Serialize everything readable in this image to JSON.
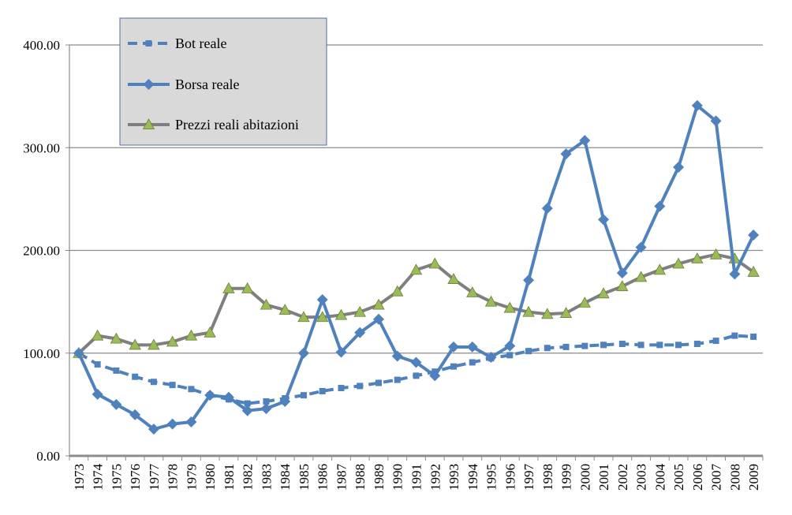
{
  "chart_data": {
    "type": "line",
    "title": "",
    "xlabel": "",
    "ylabel": "",
    "ylim": [
      0,
      400
    ],
    "y_ticks": [
      "0.00",
      "100.00",
      "200.00",
      "300.00",
      "400.00"
    ],
    "grid": "horizontal",
    "legend_position": "top-left",
    "categories": [
      "1973",
      "1974",
      "1975",
      "1976",
      "1977",
      "1978",
      "1979",
      "1980",
      "1981",
      "1982",
      "1983",
      "1984",
      "1985",
      "1986",
      "1987",
      "1988",
      "1989",
      "1990",
      "1991",
      "1992",
      "1993",
      "1994",
      "1995",
      "1996",
      "1997",
      "1998",
      "1999",
      "2000",
      "2001",
      "2002",
      "2003",
      "2004",
      "2005",
      "2006",
      "2007",
      "2008",
      "2009"
    ],
    "series": [
      {
        "name": "Bot reale",
        "color": "#4f81bd",
        "line_style": "dashed",
        "marker": "square",
        "values": [
          100,
          89,
          83,
          77,
          72,
          69,
          65,
          59,
          55,
          51,
          53,
          56,
          59,
          63,
          66,
          68,
          71,
          74,
          78,
          82,
          87,
          91,
          95,
          98,
          102,
          105,
          106,
          107,
          108,
          109,
          108,
          108,
          108,
          109,
          112,
          117,
          116
        ]
      },
      {
        "name": "Borsa reale",
        "color": "#4f81bd",
        "line_style": "solid",
        "marker": "diamond",
        "values": [
          100,
          60,
          50,
          40,
          26,
          31,
          33,
          59,
          57,
          44,
          46,
          53,
          100,
          152,
          101,
          120,
          133,
          97,
          91,
          78,
          106,
          106,
          96,
          107,
          171,
          241,
          294,
          307,
          230,
          178,
          203,
          243,
          281,
          341,
          326,
          177,
          215
        ]
      },
      {
        "name": "Prezzi reali abitazioni",
        "color": "#7f7f7f",
        "marker_color": "#9bbb59",
        "line_style": "solid",
        "marker": "triangle",
        "values": [
          100,
          117,
          114,
          108,
          108,
          111,
          117,
          120,
          163,
          163,
          147,
          142,
          135,
          135,
          137,
          140,
          147,
          160,
          181,
          187,
          172,
          159,
          150,
          144,
          140,
          138,
          139,
          149,
          158,
          165,
          174,
          181,
          187,
          192,
          196,
          192,
          179
        ]
      }
    ]
  }
}
